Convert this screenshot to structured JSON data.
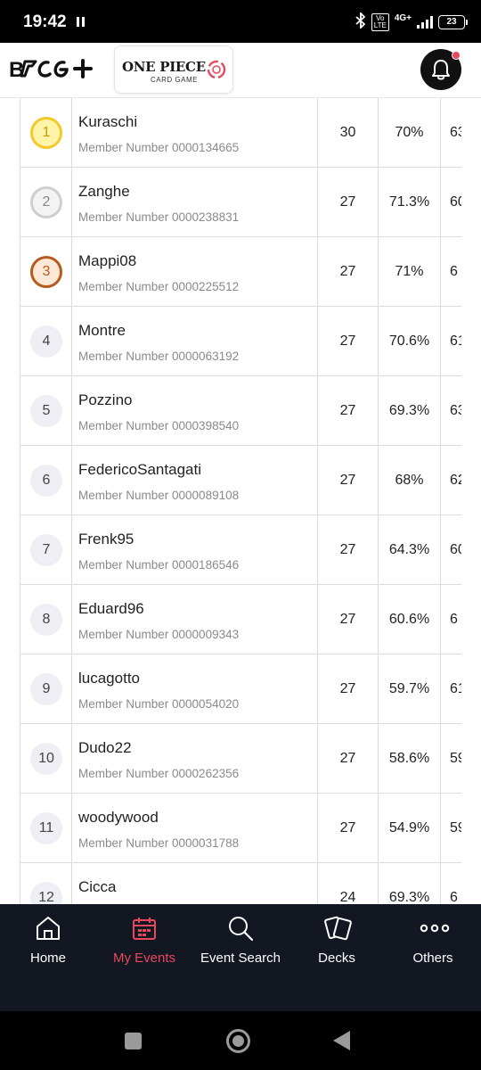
{
  "status_bar": {
    "time": "19:42",
    "network_type": "4G+",
    "volte": "Vo LTE",
    "battery": "23"
  },
  "header": {
    "app_logo": "B TCG+",
    "brand_logo_title": "ONE PIECE",
    "brand_logo_subtitle": "CARD GAME",
    "notification_icon": "bell-icon",
    "accent_color": "#e8475c"
  },
  "rankings": [
    {
      "rank": "1",
      "name": "Kuraschi",
      "member": "Member Number 0000134665",
      "points": "30",
      "win_rate": "70%",
      "omw": "63"
    },
    {
      "rank": "2",
      "name": "Zanghe",
      "member": "Member Number 0000238831",
      "points": "27",
      "win_rate": "71.3%",
      "omw": "60"
    },
    {
      "rank": "3",
      "name": "Mappi08",
      "member": "Member Number 0000225512",
      "points": "27",
      "win_rate": "71%",
      "omw": "6"
    },
    {
      "rank": "4",
      "name": "Montre",
      "member": "Member Number 0000063192",
      "points": "27",
      "win_rate": "70.6%",
      "omw": "61"
    },
    {
      "rank": "5",
      "name": "Pozzino",
      "member": "Member Number 0000398540",
      "points": "27",
      "win_rate": "69.3%",
      "omw": "63"
    },
    {
      "rank": "6",
      "name": "FedericoSantagati",
      "member": "Member Number 0000089108",
      "points": "27",
      "win_rate": "68%",
      "omw": "62"
    },
    {
      "rank": "7",
      "name": "Frenk95",
      "member": "Member Number 0000186546",
      "points": "27",
      "win_rate": "64.3%",
      "omw": "60"
    },
    {
      "rank": "8",
      "name": "Eduard96",
      "member": "Member Number 0000009343",
      "points": "27",
      "win_rate": "60.6%",
      "omw": "6"
    },
    {
      "rank": "9",
      "name": "lucagotto",
      "member": "Member Number 0000054020",
      "points": "27",
      "win_rate": "59.7%",
      "omw": "61"
    },
    {
      "rank": "10",
      "name": "Dudo22",
      "member": "Member Number 0000262356",
      "points": "27",
      "win_rate": "58.6%",
      "omw": "59"
    },
    {
      "rank": "11",
      "name": "woodywood",
      "member": "Member Number 0000031788",
      "points": "27",
      "win_rate": "54.9%",
      "omw": "59"
    },
    {
      "rank": "12",
      "name": "Cicca",
      "member": "",
      "points": "24",
      "win_rate": "69.3%",
      "omw": "6"
    }
  ],
  "bottom_nav": {
    "items": [
      {
        "label": "Home",
        "icon": "home-icon"
      },
      {
        "label": "My Events",
        "icon": "calendar-icon",
        "active": true
      },
      {
        "label": "Event Search",
        "icon": "search-icon"
      },
      {
        "label": "Decks",
        "icon": "cards-icon"
      },
      {
        "label": "Others",
        "icon": "more-icon"
      }
    ]
  }
}
